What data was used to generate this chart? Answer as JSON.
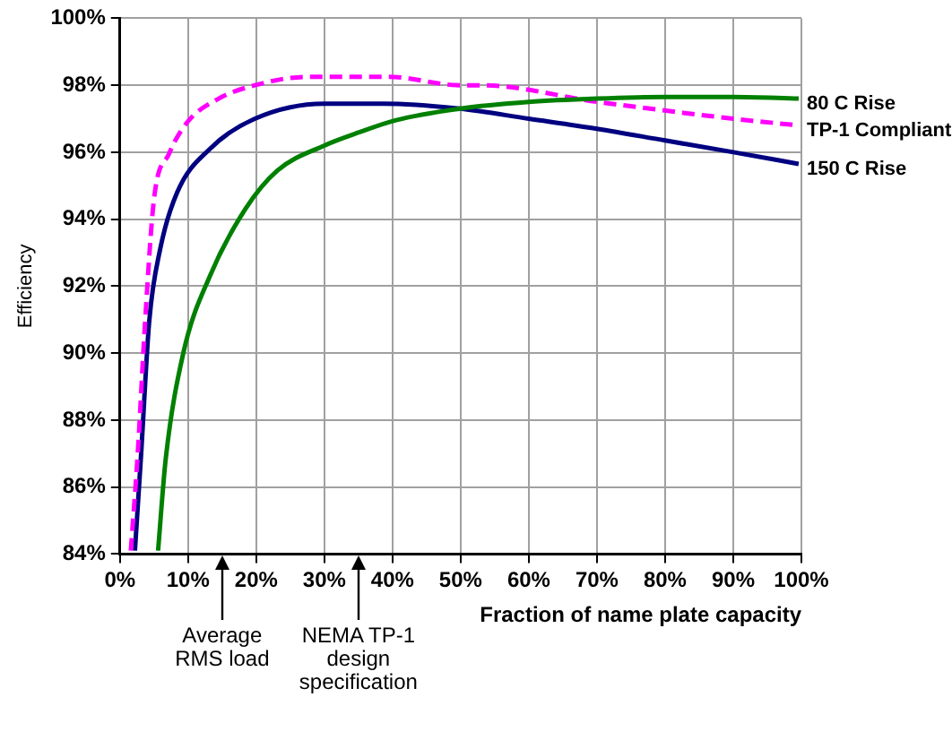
{
  "chart_data": {
    "type": "line",
    "xlabel": "Fraction of name plate capacity",
    "ylabel": "Efficiency",
    "xlim": [
      0,
      100
    ],
    "xticks": [
      {
        "value": 0,
        "label": "0%"
      },
      {
        "value": 10,
        "label": "10%"
      },
      {
        "value": 20,
        "label": "20%"
      },
      {
        "value": 30,
        "label": "30%"
      },
      {
        "value": 40,
        "label": "40%"
      },
      {
        "value": 50,
        "label": "50%"
      },
      {
        "value": 60,
        "label": "60%"
      },
      {
        "value": 70,
        "label": "70%"
      },
      {
        "value": 80,
        "label": "80%"
      },
      {
        "value": 90,
        "label": "90%"
      },
      {
        "value": 100,
        "label": "100%"
      }
    ],
    "ylim": [
      84,
      100
    ],
    "yticks": [
      {
        "value": 84,
        "label": "84%"
      },
      {
        "value": 86,
        "label": "86%"
      },
      {
        "value": 88,
        "label": "88%"
      },
      {
        "value": 90,
        "label": "90%"
      },
      {
        "value": 92,
        "label": "92%"
      },
      {
        "value": 94,
        "label": "94%"
      },
      {
        "value": 96,
        "label": "96%"
      },
      {
        "value": 98,
        "label": "98%"
      },
      {
        "value": 100,
        "label": "100%"
      }
    ],
    "grid": true,
    "legend": false,
    "marker": "none",
    "series": [
      {
        "name": "80 C Rise",
        "color": "#008000",
        "line_style": "solid",
        "x": [
          5.6,
          6.7,
          9.3,
          13.2,
          18.4,
          23.1,
          30,
          35.2,
          40.4,
          49.9,
          60,
          70,
          80,
          90,
          99.6
        ],
        "values": [
          84.1,
          86.8,
          90.0,
          92.3,
          94.3,
          95.45,
          96.2,
          96.6,
          96.95,
          97.3,
          97.5,
          97.6,
          97.65,
          97.65,
          97.6
        ]
      },
      {
        "name": "TP-1 Compliant",
        "color": "#ff00ff",
        "line_style": "dashed",
        "x": [
          1.6,
          2.6,
          3.7,
          5.0,
          7.2,
          9.9,
          14.5,
          19.8,
          27.5,
          39.5,
          49.9,
          52.9,
          70.2,
          90,
          99.6
        ],
        "values": [
          84.1,
          86.95,
          90.95,
          94.6,
          95.95,
          96.9,
          97.6,
          98.0,
          98.25,
          98.25,
          98.0,
          98.0,
          97.5,
          97.0,
          96.8
        ]
      },
      {
        "name": "150 C Rise",
        "color": "#000080",
        "line_style": "solid",
        "x": [
          2.2,
          3.1,
          4.3,
          5.9,
          8.4,
          13.2,
          19.8,
          30,
          38.7,
          49.9,
          60,
          70,
          80,
          90,
          99.6
        ],
        "values": [
          84.1,
          86.95,
          90.95,
          93.1,
          94.8,
          96.1,
          97.0,
          97.45,
          97.45,
          97.3,
          97.0,
          96.7,
          96.35,
          96.0,
          95.65
        ]
      }
    ],
    "annotations": [
      "Average RMS load",
      "NEMA TP-1 design specification"
    ]
  }
}
